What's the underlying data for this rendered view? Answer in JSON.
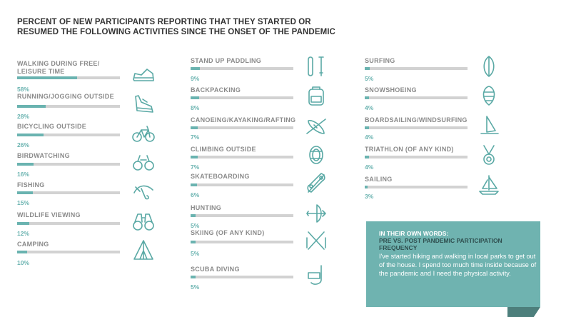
{
  "title_lines": [
    "PERCENT OF NEW PARTICIPANTS REPORTING THAT THEY STARTED OR",
    "RESUMED THE FOLLOWING ACTIVITIES SINCE THE ONSET OF THE PANDEMIC"
  ],
  "colors": {
    "bar_fill": "#6ab3b0",
    "bar_track": "#d2d2d2",
    "label": "#8a8a8a",
    "box": "#6fb3b0"
  },
  "chart_data": {
    "type": "bar",
    "title": "PERCENT OF NEW PARTICIPANTS REPORTING THAT THEY STARTED OR RESUMED THE FOLLOWING ACTIVITIES SINCE THE ONSET OF THE PANDEMIC",
    "xlim": [
      0,
      100
    ],
    "categories": [
      "WALKING DURING FREE/ LEISURE TIME",
      "RUNNING/JOGGING OUTSIDE",
      "BICYCLING OUTSIDE",
      "BIRDWATCHING",
      "FISHING",
      "WILDLIFE VIEWING",
      "CAMPING",
      "STAND UP PADDLING",
      "BACKPACKING",
      "CANOEING/KAYAKING/RAFTING",
      "CLIMBING OUTSIDE",
      "SKATEBOARDING",
      "HUNTING",
      "SKIING (OF ANY KIND)",
      "SCUBA DIVING",
      "SURFING",
      "SNOWSHOEING",
      "BOARDSAILING/WINDSURFING",
      "TRIATHLON (OF ANY KIND)",
      "SAILING"
    ],
    "values": [
      58,
      28,
      26,
      16,
      15,
      12,
      10,
      9,
      8,
      7,
      7,
      6,
      5,
      5,
      5,
      5,
      4,
      4,
      4,
      3
    ],
    "labels": [
      "58%",
      "28%",
      "26%",
      "16%",
      "15%",
      "12%",
      "10%",
      "9%",
      "8%",
      "7%",
      "7%",
      "6%",
      "5%",
      "5%",
      "5%",
      "5%",
      "4%",
      "4%",
      "4%",
      "3%"
    ],
    "icons": [
      "sneaker-icon",
      "running-shoe-icon",
      "bicycle-icon",
      "birdwatching-binoculars-icon",
      "fishing-fly-icon",
      "binoculars-icon",
      "tent-icon",
      "paddleboard-icon",
      "backpack-icon",
      "kayak-icon",
      "climbing-rope-icon",
      "skateboard-icon",
      "bow-arrow-icon",
      "skis-icon",
      "snorkel-mask-icon",
      "surfboard-icon",
      "snowshoe-icon",
      "windsurf-icon",
      "medal-icon",
      "sailboat-icon"
    ]
  },
  "quote_box": {
    "heading": "IN THEIR OWN WORDS:",
    "subheading": "PRE VS. POST PANDEMIC PARTICIPATION FREQUENCY",
    "quote": "I've started hiking and walking in local parks to get out of the house. I spend too much time inside because of the pandemic and I need the physical activity."
  }
}
